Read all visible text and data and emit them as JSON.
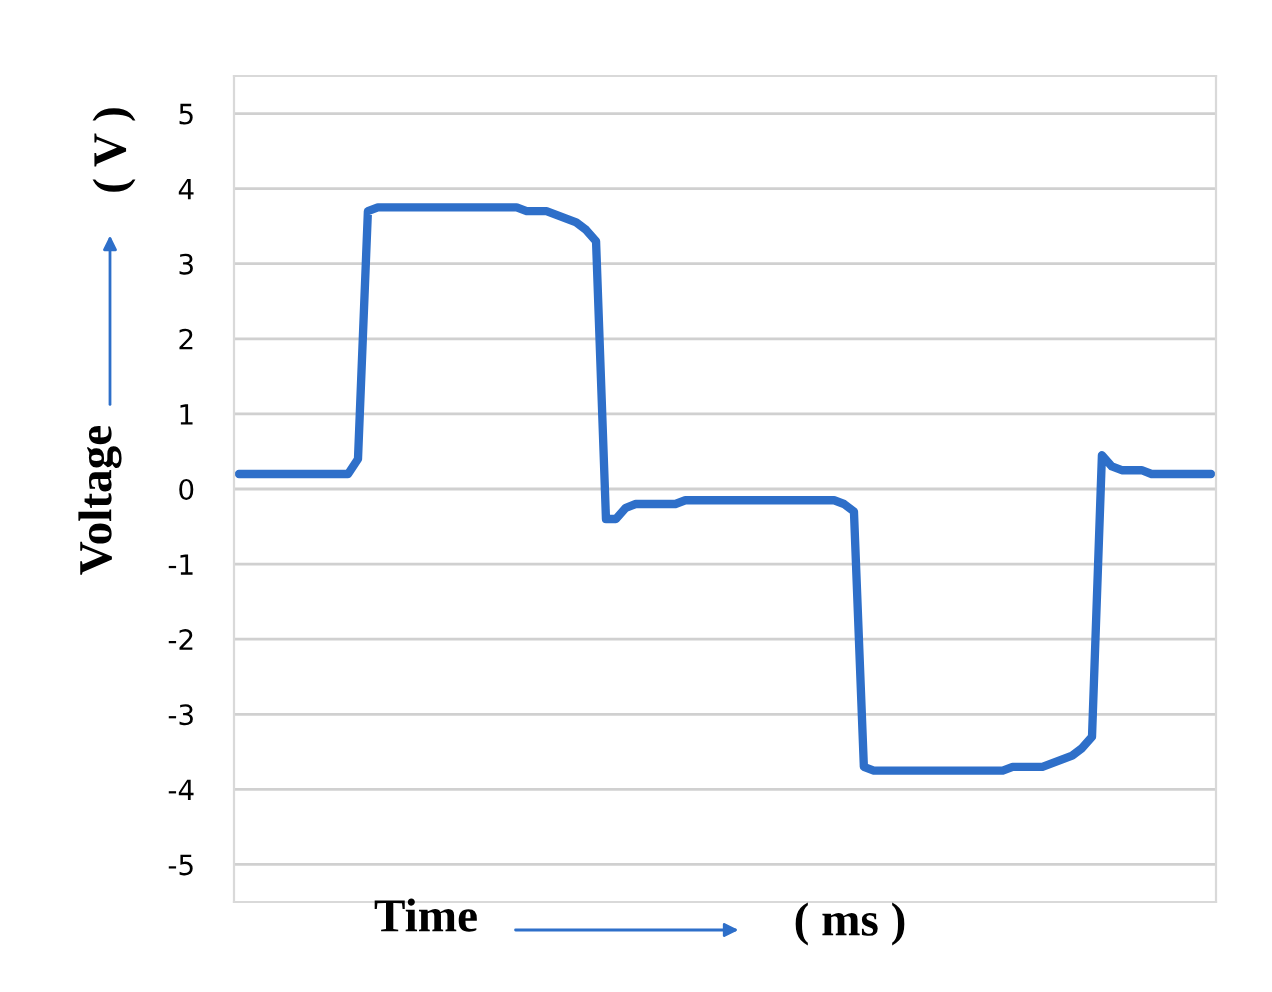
{
  "chart_data": {
    "type": "line",
    "xlabel": "Time",
    "ylabel": "Voltage",
    "annotations": [
      "( ms )",
      "( V )"
    ],
    "categories": [
      null,
      null,
      null,
      null,
      null,
      null,
      null,
      null,
      null,
      null,
      null,
      null,
      null,
      null,
      null,
      null,
      null,
      null,
      null,
      null,
      null,
      null,
      null,
      null,
      null,
      null,
      null,
      null,
      null,
      null,
      null,
      null,
      null,
      null,
      null,
      null,
      null,
      null,
      null,
      null,
      null,
      null,
      null,
      null,
      null,
      null,
      null,
      null,
      null,
      null,
      null,
      null,
      null,
      null,
      null,
      null,
      null,
      null,
      null,
      null,
      null,
      null,
      null,
      null,
      null,
      null,
      null,
      null,
      null,
      null,
      null,
      null,
      null,
      null,
      null,
      null,
      null,
      null,
      null,
      null,
      null,
      null,
      null,
      null,
      null,
      null,
      null,
      null,
      null,
      null,
      null,
      null,
      null,
      null,
      null,
      null,
      null,
      null,
      null
    ],
    "series": [
      {
        "color": "#2e6fc9",
        "values": [
          0.2,
          0.2,
          0.2,
          0.2,
          0.2,
          0.2,
          0.2,
          0.2,
          0.2,
          0.2,
          0.2,
          0.2,
          0.4,
          3.7,
          3.75,
          3.75,
          3.75,
          3.75,
          3.75,
          3.75,
          3.75,
          3.75,
          3.75,
          3.75,
          3.75,
          3.75,
          3.75,
          3.75,
          3.75,
          3.7,
          3.7,
          3.7,
          3.65,
          3.6,
          3.55,
          3.45,
          3.3,
          -0.4,
          -0.4,
          -0.25,
          -0.2,
          -0.2,
          -0.2,
          -0.2,
          -0.2,
          -0.15,
          -0.15,
          -0.15,
          -0.15,
          -0.15,
          -0.15,
          -0.15,
          -0.15,
          -0.15,
          -0.15,
          -0.15,
          -0.15,
          -0.15,
          -0.15,
          -0.15,
          -0.15,
          -0.2,
          -0.3,
          -3.7,
          -3.75,
          -3.75,
          -3.75,
          -3.75,
          -3.75,
          -3.75,
          -3.75,
          -3.75,
          -3.75,
          -3.75,
          -3.75,
          -3.75,
          -3.75,
          -3.75,
          -3.7,
          -3.7,
          -3.7,
          -3.7,
          -3.65,
          -3.6,
          -3.55,
          -3.45,
          -3.3,
          0.45,
          0.3,
          0.25,
          0.25,
          0.25,
          0.2,
          0.2,
          0.2,
          0.2,
          0.2,
          0.2,
          0.2
        ]
      }
    ],
    "ylim": [
      -5.5,
      5.5
    ],
    "yticks": [
      -5,
      -4,
      -3,
      -2,
      -1,
      0,
      1,
      2,
      3,
      4,
      5
    ],
    "grid": "y",
    "tick_labels": "y",
    "marker": "none",
    "line_style": "solid",
    "legend": false
  }
}
